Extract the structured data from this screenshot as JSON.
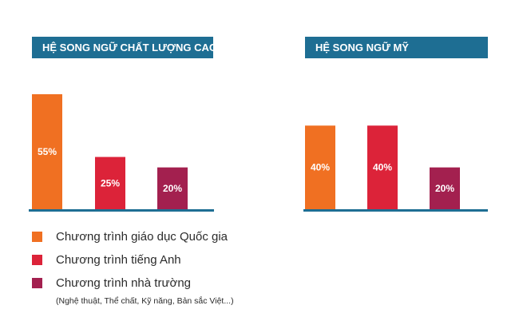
{
  "chart_data": [
    {
      "type": "bar",
      "title": "HỆ SONG NGỮ CHẤT LƯỢNG CAO",
      "categories": [
        "Chương trình giáo dục Quốc gia",
        "Chương trình tiếng Anh",
        "Chương trình nhà trường"
      ],
      "values": [
        55,
        25,
        20
      ],
      "value_labels": [
        "55%",
        "25%",
        "20%"
      ],
      "colors": [
        "#f07022",
        "#dc2339",
        "#a3204f"
      ],
      "ylim": [
        0,
        55
      ],
      "grid": false,
      "legend": "bottom-left"
    },
    {
      "type": "bar",
      "title": "HỆ SONG NGỮ MỸ",
      "categories": [
        "Chương trình giáo dục Quốc gia",
        "Chương trình tiếng Anh",
        "Chương trình nhà trường"
      ],
      "values": [
        40,
        40,
        20
      ],
      "value_labels": [
        "40%",
        "40%",
        "20%"
      ],
      "colors": [
        "#f07022",
        "#dc2339",
        "#a3204f"
      ],
      "ylim": [
        0,
        55
      ],
      "grid": false,
      "legend": "bottom-left"
    }
  ],
  "legend": {
    "items": [
      {
        "label": "Chương trình giáo dục Quốc gia",
        "color": "#f07022"
      },
      {
        "label": "Chương trình tiếng Anh",
        "color": "#dc2339"
      },
      {
        "label": "Chương trình nhà trường",
        "color": "#a3204f"
      }
    ],
    "note": "(Nghệ thuật, Thể chất, Kỹ năng, Bản sắc Việt...)"
  },
  "colors": {
    "header_bg": "#1e6e93",
    "baseline": "#1e6e93"
  }
}
